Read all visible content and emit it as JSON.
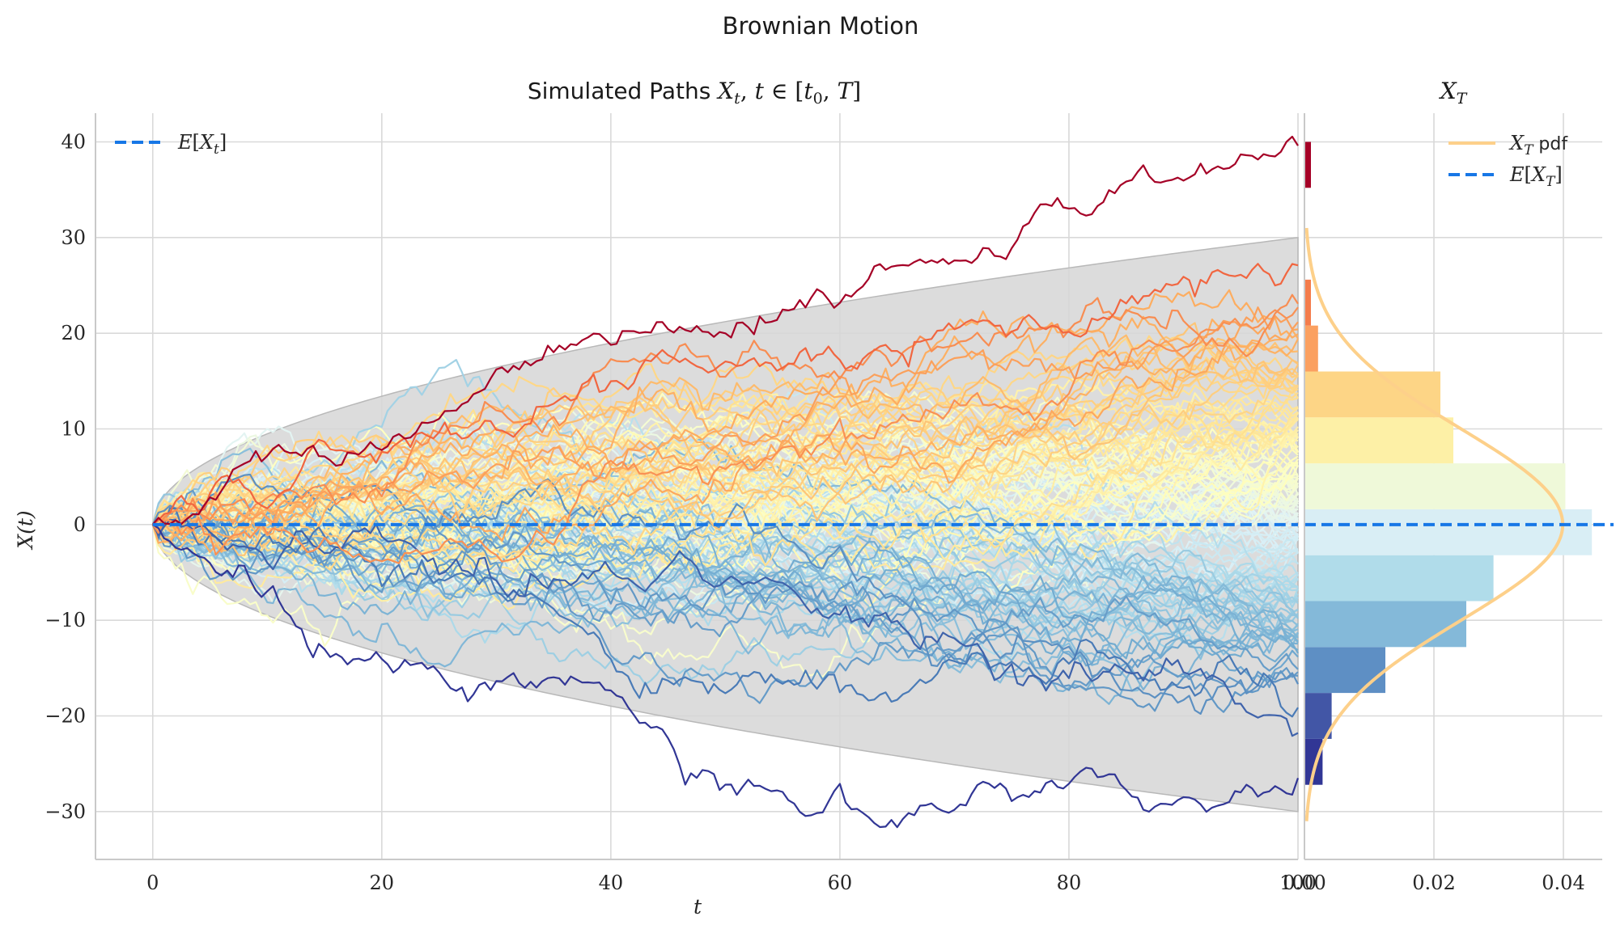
{
  "figure": {
    "suptitle": "Brownian Motion"
  },
  "colors": {
    "expectation_line": "#1777e6",
    "band_fill": "#d6d6d6",
    "pdf_line": "#fdd08a",
    "grid": "#d9d9d9",
    "spine": "#c9c9c9"
  },
  "chart_data": [
    {
      "type": "line",
      "title": "Simulated Paths X_t, t ∈ [t_0, T]",
      "xlabel": "t",
      "ylabel": "X(t)",
      "xlim": [
        -5,
        100
      ],
      "ylim": [
        -35,
        43
      ],
      "x_ticks": [
        0,
        20,
        40,
        60,
        80,
        100
      ],
      "y_ticks": [
        -30,
        -20,
        -10,
        0,
        10,
        20,
        30,
        40
      ],
      "x_tick_labels": [
        "0",
        "20",
        "40",
        "60",
        "80",
        "100"
      ],
      "y_tick_labels": [
        "−30",
        "−20",
        "−10",
        "0",
        "10",
        "20",
        "30",
        "40"
      ],
      "grid": true,
      "legend": {
        "placement": "upper-left",
        "entries": [
          "E[X_t]"
        ]
      },
      "expectation": 0,
      "confidence_band": {
        "lower_at_T": -30,
        "upper_at_T": 30,
        "shape": "±3·√t"
      },
      "paths": {
        "count": 150,
        "t_start": 0,
        "t_end": 100,
        "steps": 200,
        "colormap": "RdYlBu_r by final value",
        "highlights": [
          {
            "name": "max path",
            "final": 39.6,
            "color": "#a50026"
          },
          {
            "name": "min path",
            "final": -26.5,
            "color": "#313695"
          }
        ]
      }
    },
    {
      "type": "bar",
      "orientation": "horizontal",
      "title": "X_T",
      "xlim": [
        0,
        0.046
      ],
      "x_ticks": [
        0,
        0.02,
        0.04
      ],
      "x_tick_labels": [
        "0.00",
        "0.02",
        "0.04"
      ],
      "bins": [
        {
          "low": -27.2,
          "high": -22.4,
          "density": 0.0028,
          "color": "#313695"
        },
        {
          "low": -22.4,
          "high": -17.6,
          "density": 0.0042,
          "color": "#4256a6"
        },
        {
          "low": -17.6,
          "high": -12.8,
          "density": 0.0125,
          "color": "#5e8fc4"
        },
        {
          "low": -12.8,
          "high": -8.0,
          "density": 0.025,
          "color": "#84b9d9"
        },
        {
          "low": -8.0,
          "high": -3.2,
          "density": 0.0292,
          "color": "#b0dcea"
        },
        {
          "low": -3.2,
          "high": 1.6,
          "density": 0.0444,
          "color": "#d9eef5"
        },
        {
          "low": 1.6,
          "high": 6.4,
          "density": 0.0403,
          "color": "#eff9d9"
        },
        {
          "low": 6.4,
          "high": 11.2,
          "density": 0.023,
          "color": "#fdf0a6"
        },
        {
          "low": 11.2,
          "high": 16.0,
          "density": 0.021,
          "color": "#fdd586"
        },
        {
          "low": 16.0,
          "high": 20.8,
          "density": 0.0021,
          "color": "#fba060"
        },
        {
          "low": 20.8,
          "high": 25.6,
          "density": 0.001,
          "color": "#f47c4b"
        },
        {
          "low": 35.2,
          "high": 40.0,
          "density": 0.001,
          "color": "#a50026"
        }
      ],
      "pdf": {
        "mean": 0,
        "std": 10,
        "y_range": [
          -31,
          31
        ]
      },
      "expectation": 0,
      "legend": {
        "placement": "upper-right",
        "entries": [
          "X_T pdf",
          "E[X_T]"
        ]
      }
    }
  ]
}
